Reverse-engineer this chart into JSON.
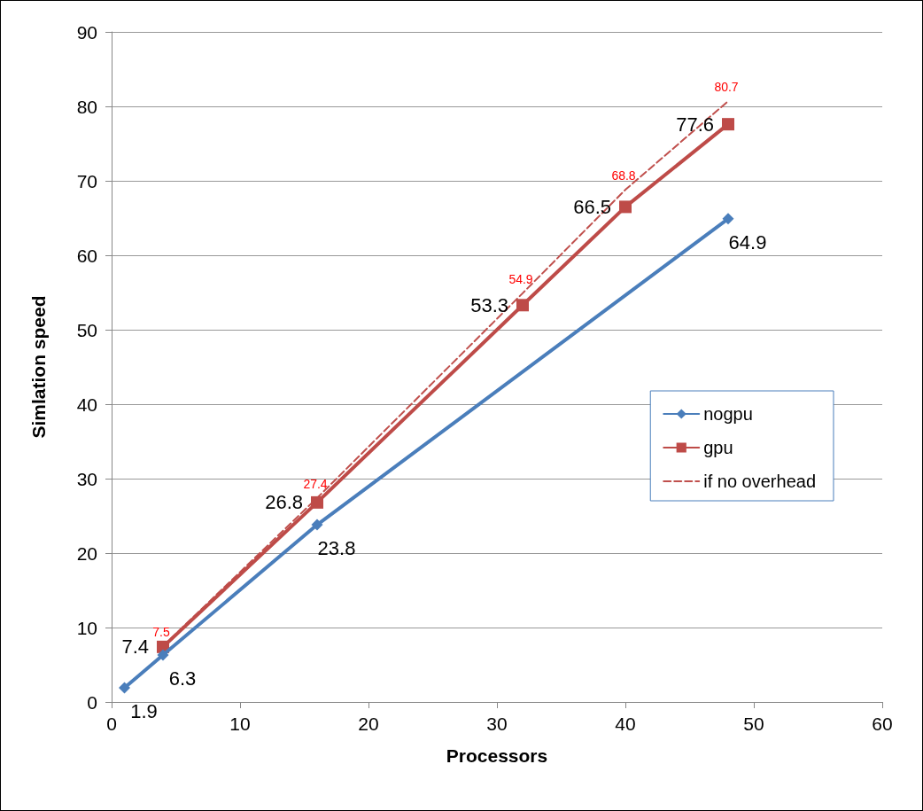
{
  "chart_data": {
    "type": "line",
    "xlabel": "Processors",
    "ylabel": "Simlation speed",
    "xlim": [
      0,
      60
    ],
    "xticks": [
      0,
      10,
      20,
      30,
      40,
      50,
      60
    ],
    "ylim": [
      0,
      90
    ],
    "yticks": [
      0,
      10,
      20,
      30,
      40,
      50,
      60,
      70,
      80,
      90
    ],
    "grid": "y",
    "legend": "right",
    "data_labels": true,
    "series": [
      {
        "name": "nogpu",
        "color": "#4a7ebb",
        "marker": "diamond",
        "line_style": "solid",
        "x": [
          1,
          4,
          16,
          48
        ],
        "values": [
          1.9,
          6.3,
          23.8,
          64.9
        ]
      },
      {
        "name": "gpu",
        "color": "#be4b48",
        "marker": "square",
        "line_style": "solid",
        "x": [
          4,
          16,
          32,
          40,
          48
        ],
        "values": [
          7.4,
          26.8,
          53.3,
          66.5,
          77.6
        ]
      },
      {
        "name": "if no overhead",
        "color": "#c0504d",
        "marker": "none",
        "line_style": "dashed",
        "x": [
          4,
          16,
          32,
          40,
          48
        ],
        "values": [
          7.5,
          27.4,
          54.9,
          68.8,
          80.7
        ]
      }
    ]
  }
}
